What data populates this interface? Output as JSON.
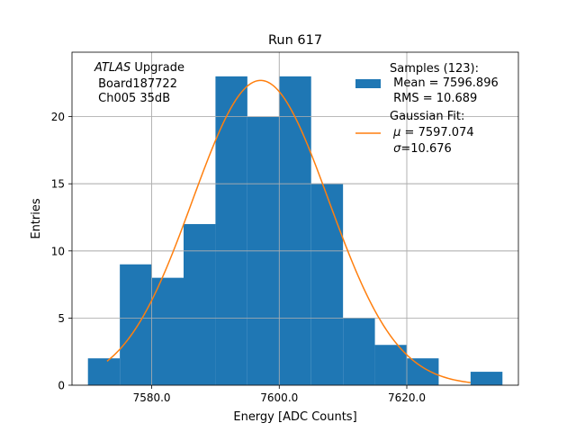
{
  "chart_data": {
    "type": "bar",
    "title": "Run 617",
    "xlabel": "Energy [ADC Counts]",
    "ylabel": "Entries",
    "xlim": [
      7567.5,
      7637.5
    ],
    "ylim": [
      0,
      24.8
    ],
    "xticks": [
      7580.0,
      7600.0,
      7620.0
    ],
    "xtick_labels": [
      "7580.0",
      "7600.0",
      "7620.0"
    ],
    "yticks": [
      0,
      5,
      10,
      15,
      20
    ],
    "ytick_labels": [
      "0",
      "5",
      "10",
      "15",
      "20"
    ],
    "grid": true,
    "bins": [
      {
        "x0": 7570,
        "x1": 7575,
        "count": 2
      },
      {
        "x0": 7575,
        "x1": 7580,
        "count": 9
      },
      {
        "x0": 7580,
        "x1": 7585,
        "count": 8
      },
      {
        "x0": 7585,
        "x1": 7590,
        "count": 12
      },
      {
        "x0": 7590,
        "x1": 7595,
        "count": 23
      },
      {
        "x0": 7595,
        "x1": 7600,
        "count": 20
      },
      {
        "x0": 7600,
        "x1": 7605,
        "count": 23
      },
      {
        "x0": 7605,
        "x1": 7610,
        "count": 15
      },
      {
        "x0": 7610,
        "x1": 7615,
        "count": 5
      },
      {
        "x0": 7615,
        "x1": 7620,
        "count": 3
      },
      {
        "x0": 7620,
        "x1": 7625,
        "count": 2
      },
      {
        "x0": 7625,
        "x1": 7630,
        "count": 0
      },
      {
        "x0": 7630,
        "x1": 7635,
        "count": 1
      }
    ],
    "fit": {
      "mu": 7597.074,
      "sigma": 10.676,
      "amplitude": 22.7,
      "x_range": [
        7573,
        7630
      ]
    },
    "colors": {
      "histogram": "#1f77b4",
      "fit": "#ff7f0e",
      "grid": "#b0b0b0"
    },
    "annotation": {
      "line1_italic": "ATLAS",
      "line1_rest": " Upgrade",
      "line2": " Board187722",
      "line3": " Ch005 35dB"
    },
    "legend": {
      "placement": "top-right",
      "samples": {
        "line1": "Samples (123):",
        "line2": " Mean = 7596.896",
        "line3": " RMS = 10.689"
      },
      "fit": {
        "line1": "Gaussian Fit:",
        "line2_sym": "μ",
        "line2_rest": " = 7597.074",
        "line3_sym": "σ",
        "line3_rest": "=10.676"
      }
    }
  }
}
